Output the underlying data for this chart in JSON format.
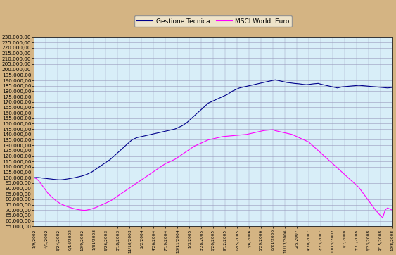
{
  "legend_labels": [
    "Gestione Tecnica",
    "MSCI World  Euro"
  ],
  "line1_color": "#00008B",
  "line2_color": "#FF00FF",
  "background_outer": "#D4B483",
  "background_plot": "#D8EEF8",
  "grid_color": "#9999BB",
  "ylim": [
    55000,
    230000
  ],
  "yticks": [
    55000,
    60000,
    65000,
    70000,
    75000,
    80000,
    85000,
    90000,
    95000,
    100000,
    105000,
    110000,
    115000,
    120000,
    125000,
    130000,
    135000,
    140000,
    145000,
    150000,
    155000,
    160000,
    165000,
    170000,
    175000,
    180000,
    185000,
    190000,
    195000,
    200000,
    205000,
    210000,
    215000,
    220000,
    225000,
    230000
  ],
  "xtick_labels": [
    "1/9/2002",
    "4/1/2002",
    "6/24/2002",
    "9/16/2002",
    "12/9/2002",
    "1/31/2003",
    "5/26/2003",
    "8/18/2003",
    "11/10/2003",
    "2/2/2004",
    "4/26/2004",
    "7/19/2004",
    "10/11/2004",
    "1/3/2005",
    "3/28/2005",
    "6/20/2005",
    "9/12/2005",
    "12/5/2005",
    "3/6/2006",
    "5/29/2006",
    "8/21/2006",
    "11/13/2006",
    "2/5/2007",
    "4/30/2007",
    "7/23/2007",
    "10/15/2007",
    "1/7/2008",
    "3/31/2008",
    "6/23/2008",
    "9/15/2008",
    "12/8/2008"
  ],
  "gestione_tecnica_x": [
    0,
    2,
    4,
    6,
    8,
    10,
    12,
    14,
    16,
    18,
    20,
    22,
    24,
    26,
    28,
    30,
    32,
    34,
    36,
    38,
    40,
    42,
    44,
    46,
    48,
    50,
    52,
    54,
    56,
    58,
    60,
    62,
    64,
    66,
    68,
    70,
    72,
    74,
    76,
    78,
    80,
    82,
    84,
    86,
    88,
    90,
    92,
    94,
    96,
    98,
    100,
    102,
    104,
    106,
    108,
    110,
    112,
    114,
    116,
    118,
    120,
    122,
    124,
    126,
    128,
    130,
    132,
    134,
    136,
    138,
    140,
    142,
    144,
    146,
    148,
    150,
    152,
    154,
    156,
    158,
    160,
    162,
    164,
    166,
    168,
    170,
    172,
    174,
    176,
    178,
    180,
    182,
    184,
    186,
    188,
    190,
    192,
    194,
    196,
    198,
    200,
    202,
    204,
    206,
    208,
    210,
    212,
    214,
    216,
    218,
    220,
    222,
    224,
    226,
    228,
    230,
    232,
    234,
    236,
    238,
    240,
    242,
    244,
    246,
    248,
    250,
    252,
    254,
    256,
    258,
    260,
    262,
    264,
    266,
    268,
    270,
    272,
    274,
    276,
    278,
    280,
    282,
    284,
    286,
    288,
    290,
    292,
    294,
    296,
    298,
    300
  ],
  "gestione_tecnica_y": [
    100000,
    100200,
    100100,
    99800,
    99500,
    99300,
    99000,
    98800,
    98500,
    98300,
    98100,
    98000,
    98200,
    98500,
    98800,
    99200,
    99600,
    100000,
    100500,
    101000,
    101500,
    102200,
    103000,
    104000,
    105000,
    106500,
    108000,
    109500,
    111000,
    112500,
    114000,
    115500,
    117000,
    119000,
    121000,
    123000,
    125000,
    127000,
    129000,
    131000,
    133000,
    135000,
    136000,
    137000,
    137500,
    138000,
    138500,
    139000,
    139500,
    140000,
    140500,
    141000,
    141500,
    142000,
    142500,
    143000,
    143500,
    144000,
    144500,
    145000,
    146000,
    147000,
    148000,
    149500,
    151000,
    153000,
    155000,
    157000,
    159000,
    161000,
    163000,
    165000,
    167000,
    169000,
    170000,
    171000,
    172000,
    173000,
    174000,
    175000,
    176000,
    177000,
    178500,
    180000,
    181000,
    182000,
    183000,
    183500,
    184000,
    184500,
    185000,
    185500,
    186000,
    186500,
    187000,
    187500,
    188000,
    188500,
    189000,
    189500,
    190000,
    190500,
    190000,
    189500,
    189000,
    188500,
    188000,
    187800,
    187500,
    187200,
    187000,
    186800,
    186500,
    186200,
    186000,
    186200,
    186500,
    186800,
    187000,
    187200,
    186500,
    186000,
    185500,
    185000,
    184500,
    184000,
    183500,
    183000,
    183500,
    184000,
    184200,
    184400,
    184600,
    184800,
    185000,
    185200,
    185400,
    185200,
    185000,
    184800,
    184600,
    184400,
    184200,
    184000,
    183800,
    183600,
    183400,
    183200,
    183000,
    183200,
    183500
  ],
  "msci_world_x": [
    0,
    2,
    4,
    6,
    8,
    10,
    12,
    14,
    16,
    18,
    20,
    22,
    24,
    26,
    28,
    30,
    32,
    34,
    36,
    38,
    40,
    42,
    44,
    46,
    48,
    50,
    52,
    54,
    56,
    58,
    60,
    62,
    64,
    66,
    68,
    70,
    72,
    74,
    76,
    78,
    80,
    82,
    84,
    86,
    88,
    90,
    92,
    94,
    96,
    98,
    100,
    102,
    104,
    106,
    108,
    110,
    112,
    114,
    116,
    118,
    120,
    122,
    124,
    126,
    128,
    130,
    132,
    134,
    136,
    138,
    140,
    142,
    144,
    146,
    148,
    150,
    152,
    154,
    156,
    158,
    160,
    162,
    164,
    166,
    168,
    170,
    172,
    174,
    176,
    178,
    180,
    182,
    184,
    186,
    188,
    190,
    192,
    194,
    196,
    198,
    200,
    202,
    204,
    206,
    208,
    210,
    212,
    214,
    216,
    218,
    220,
    222,
    224,
    226,
    228,
    230,
    232,
    234,
    236,
    238,
    240,
    242,
    244,
    246,
    248,
    250,
    252,
    254,
    256,
    258,
    260,
    262,
    264,
    266,
    268,
    270,
    272,
    274,
    276,
    278,
    280,
    282,
    284,
    286,
    288,
    290,
    292,
    294,
    296,
    298,
    300
  ],
  "msci_world_y": [
    100000,
    99000,
    97000,
    94000,
    91000,
    88000,
    85000,
    83000,
    81000,
    79000,
    77500,
    76000,
    75000,
    74000,
    73200,
    72500,
    71800,
    71200,
    70700,
    70300,
    70000,
    69800,
    70000,
    70500,
    71000,
    71800,
    72500,
    73500,
    74500,
    75500,
    76500,
    77500,
    78500,
    80000,
    81500,
    83000,
    84500,
    86000,
    87500,
    89000,
    90500,
    92000,
    93500,
    95000,
    96500,
    98000,
    99500,
    101000,
    102500,
    104000,
    105500,
    107000,
    108500,
    110000,
    111500,
    113000,
    114000,
    115000,
    116000,
    117000,
    118500,
    120000,
    121500,
    123000,
    124500,
    126000,
    127500,
    129000,
    130000,
    131000,
    132000,
    133000,
    134000,
    135000,
    135500,
    136000,
    136500,
    137000,
    137500,
    138000,
    138200,
    138400,
    138600,
    138800,
    139000,
    139200,
    139400,
    139600,
    139800,
    140000,
    140500,
    141000,
    141500,
    142000,
    142500,
    143000,
    143500,
    143800,
    144000,
    144200,
    144400,
    143500,
    143000,
    142500,
    142000,
    141500,
    141000,
    140500,
    140000,
    139000,
    138000,
    137000,
    136000,
    135000,
    134000,
    133000,
    131000,
    129000,
    127000,
    125000,
    123000,
    121000,
    119000,
    117000,
    115000,
    113000,
    111000,
    109000,
    107000,
    105000,
    103000,
    101000,
    99000,
    97000,
    95000,
    93000,
    91000,
    88000,
    85000,
    82000,
    79000,
    76000,
    73000,
    70000,
    67500,
    65000,
    63000,
    70000,
    72000,
    71000,
    70000
  ],
  "xmax": 300
}
